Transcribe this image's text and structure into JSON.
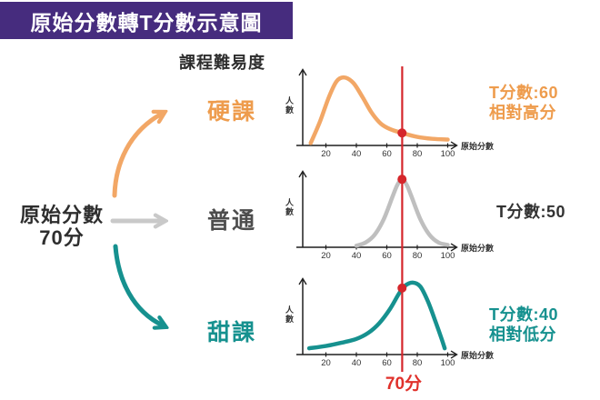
{
  "title": "原始分數轉T分數示意圖",
  "header": "課程難易度",
  "source": {
    "line1": "原始分數",
    "line2": "70分"
  },
  "score_line": {
    "value": 70,
    "label": "70分"
  },
  "colors": {
    "purple": "#462C7E",
    "red": "#D5262B",
    "red_text": "#E0312B",
    "orange": "#F2A766",
    "gray_arrow": "#C9C9C9",
    "teal": "#16918F",
    "dark": "#2E2E2E",
    "axis": "#1F1F1F"
  },
  "chart_data": [
    {
      "type": "line",
      "name": "hard-course",
      "label": "硬課",
      "label_color": "#EE9C4D",
      "curve_color": "#F2A766",
      "xlabel": "原始分數",
      "ylabel": "人數",
      "x_ticks": [
        20,
        40,
        60,
        80,
        100
      ],
      "x_range": [
        0,
        105
      ],
      "grid": false,
      "marker": {
        "x": 70,
        "h": 0.16
      },
      "t_score": {
        "line1": "T分數:60",
        "line2": "相對高分",
        "color": "#EE9C4D"
      },
      "points": [
        [
          10,
          0.03
        ],
        [
          16,
          0.3
        ],
        [
          22,
          0.62
        ],
        [
          27,
          0.82
        ],
        [
          32,
          0.87
        ],
        [
          38,
          0.8
        ],
        [
          44,
          0.62
        ],
        [
          50,
          0.42
        ],
        [
          56,
          0.28
        ],
        [
          62,
          0.21
        ],
        [
          70,
          0.16
        ],
        [
          80,
          0.11
        ],
        [
          90,
          0.085
        ],
        [
          100,
          0.075
        ]
      ]
    },
    {
      "type": "line",
      "name": "normal-course",
      "label": "普通",
      "label_color": "#4D4D4D",
      "curve_color": "#BFBFBF",
      "xlabel": "原始分數",
      "ylabel": "人數",
      "x_ticks": [
        20,
        40,
        60,
        80,
        100
      ],
      "x_range": [
        0,
        105
      ],
      "grid": false,
      "marker": {
        "x": 70,
        "h": 0.87
      },
      "t_score": {
        "line1": "T分數:50",
        "line2": "",
        "color": "#333333"
      },
      "points": [
        [
          40,
          0.02
        ],
        [
          46,
          0.06
        ],
        [
          52,
          0.16
        ],
        [
          58,
          0.36
        ],
        [
          64,
          0.66
        ],
        [
          67,
          0.8
        ],
        [
          70,
          0.87
        ],
        [
          73,
          0.8
        ],
        [
          76,
          0.66
        ],
        [
          82,
          0.36
        ],
        [
          88,
          0.16
        ],
        [
          94,
          0.06
        ],
        [
          100,
          0.03
        ]
      ]
    },
    {
      "type": "line",
      "name": "sweet-course",
      "label": "甜課",
      "label_color": "#16918F",
      "curve_color": "#16918F",
      "xlabel": "原始分數",
      "ylabel": "人數",
      "x_ticks": [
        20,
        40,
        60,
        80,
        100
      ],
      "x_range": [
        0,
        105
      ],
      "grid": false,
      "marker": {
        "x": 70,
        "h": 0.85
      },
      "t_score": {
        "line1": "T分數:40",
        "line2": "相對低分",
        "color": "#16918F"
      },
      "points": [
        [
          9,
          0.08
        ],
        [
          20,
          0.11
        ],
        [
          30,
          0.15
        ],
        [
          40,
          0.2
        ],
        [
          48,
          0.28
        ],
        [
          55,
          0.4
        ],
        [
          62,
          0.58
        ],
        [
          68,
          0.78
        ],
        [
          72,
          0.88
        ],
        [
          77,
          0.92
        ],
        [
          82,
          0.87
        ],
        [
          87,
          0.68
        ],
        [
          92,
          0.42
        ],
        [
          96,
          0.2
        ],
        [
          98,
          0.08
        ]
      ]
    }
  ]
}
